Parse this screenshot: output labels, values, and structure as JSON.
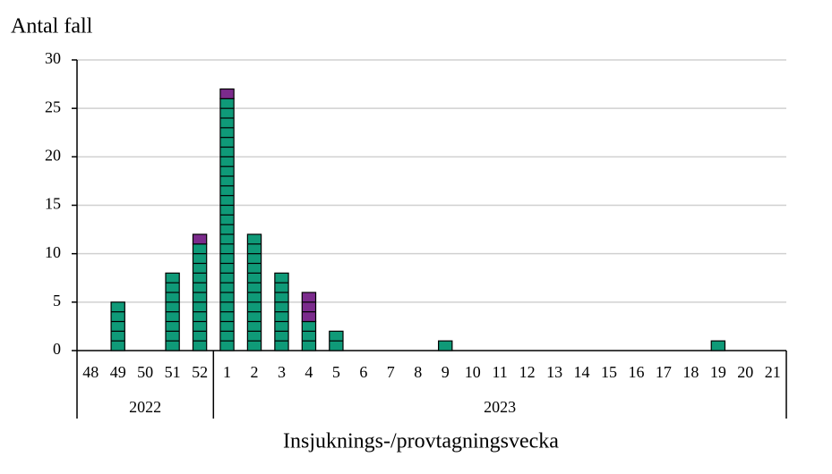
{
  "chart_data": {
    "type": "bar",
    "stacked": true,
    "y_label": "Antal fall",
    "x_label": "Insjuknings-/provtagningsvecka",
    "groups": [
      {
        "label": "2022",
        "categories": [
          "48",
          "49",
          "50",
          "51",
          "52"
        ]
      },
      {
        "label": "2023",
        "categories": [
          "1",
          "2",
          "3",
          "4",
          "5",
          "6",
          "7",
          "8",
          "9",
          "10",
          "11",
          "12",
          "13",
          "14",
          "15",
          "16",
          "17",
          "18",
          "19",
          "20",
          "21"
        ]
      }
    ],
    "series": [
      {
        "color": "#0f9a78",
        "values": [
          0,
          5,
          0,
          8,
          11,
          26,
          12,
          8,
          3,
          2,
          0,
          0,
          0,
          1,
          0,
          0,
          0,
          0,
          0,
          0,
          0,
          0,
          0,
          1,
          0,
          0
        ]
      },
      {
        "color": "#7b2b8c",
        "values": [
          0,
          0,
          0,
          0,
          1,
          1,
          0,
          0,
          3,
          0,
          0,
          0,
          0,
          0,
          0,
          0,
          0,
          0,
          0,
          0,
          0,
          0,
          0,
          0,
          0,
          0
        ]
      }
    ],
    "ylim": [
      0,
      30
    ],
    "yticks": [
      0,
      5,
      10,
      15,
      20,
      25,
      30
    ],
    "grid": true
  }
}
